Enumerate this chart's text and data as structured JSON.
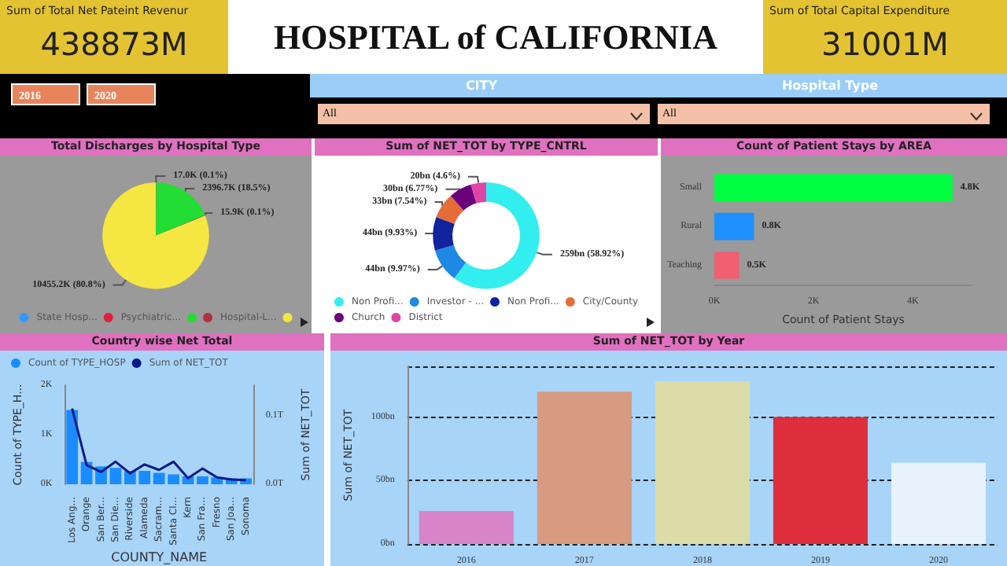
{
  "chart_data": [
    {
      "type": "other",
      "title": "Sum of Total Net Pateint Revenur",
      "annotations": [
        "438873M"
      ]
    },
    {
      "type": "other",
      "title": "HOSPITAL of CALIFORNIA"
    },
    {
      "type": "other",
      "title": "Sum of Total Capital Expenditure",
      "annotations": [
        "31001M"
      ]
    },
    {
      "type": "other",
      "annotations": [
        "2016",
        "2020",
        "CITY",
        "All",
        "Hospital Type",
        "All"
      ]
    },
    {
      "type": "pie",
      "title": "Total Discharges by Hospital Type",
      "categories": [
        "State Hosp...",
        null,
        "Psychiatric...",
        null,
        "Hospital-L...",
        null
      ],
      "values": [
        null,
        null,
        17000,
        2396700,
        15900,
        10455200
      ],
      "colors": [
        "#3399ff",
        "#1a2a9e",
        "#e0203a",
        "#22dd33",
        "#b03040",
        "#f5e642"
      ],
      "value_labels": [
        null,
        null,
        "17.0K (0.1%)",
        "2396.7K (18.5%)",
        "15.9K (0.1%)",
        "10455.2K (80.8%)"
      ],
      "legend": "bottom"
    },
    {
      "type": "donut",
      "title": "Sum of NET_TOT by TYPE_CNTRL",
      "categories": [
        "Non Profi...",
        "Investor - ...",
        "Non Profi...",
        "City/County",
        "Church",
        "District"
      ],
      "values": [
        259000000000,
        44000000000,
        44000000000,
        33000000000,
        30000000000,
        20000000000
      ],
      "colors": [
        "#33eeee",
        "#1e88e5",
        "#12239e",
        "#e66c37",
        "#6b007b",
        "#e044a7"
      ],
      "value_labels": [
        "259bn (58.92%)",
        "44bn (9.97%)",
        "44bn (9.93%)",
        "33bn (7.54%)",
        "30bn (6.77%)",
        "20bn (4.6%)"
      ],
      "legend": "bottom"
    },
    {
      "type": "bar",
      "orientation": "horizontal",
      "title": "Count of Patient Stays by AREA",
      "categories": [
        "Small",
        "Rural",
        "Teaching"
      ],
      "values": [
        4.8,
        0.8,
        0.5
      ],
      "colors": [
        "#00ff40",
        "#1e90ff",
        "#f06070"
      ],
      "value_labels": [
        "4.8K",
        "0.8K",
        "0.5K"
      ],
      "xlabel": "Count of Patient Stays",
      "xlim": [
        0,
        5.2
      ],
      "xticks": [
        {
          "value": 0,
          "label": "0K"
        },
        {
          "value": 2,
          "label": "2K"
        },
        {
          "value": 4,
          "label": "4K"
        }
      ]
    },
    {
      "type": "bar",
      "title": "Country wise Net Total",
      "categories": [
        "Los Ang...",
        "Orange",
        "San Ber...",
        "San Die...",
        "Riverside",
        "Alameda",
        "Sacram...",
        "Santa Cl...",
        "Kern",
        "San Fra...",
        "Fresno",
        "San Joa...",
        "Sonoma"
      ],
      "xlabel": "COUNTY_NAME",
      "ylabel": "Count of TYPE_H...",
      "y2label": "Sum of NET_TOT",
      "ylim": [
        0,
        2000
      ],
      "yticks": [
        {
          "value": 0,
          "label": "0K"
        },
        {
          "value": 1000,
          "label": "1K"
        },
        {
          "value": 2000,
          "label": "2K"
        }
      ],
      "y2lim": [
        0,
        0.145
      ],
      "y2ticks": [
        {
          "value": 0,
          "label": "0.0T"
        },
        {
          "value": 0.1,
          "label": "0.1T"
        }
      ],
      "legend": "top left",
      "marker": "none",
      "series": [
        {
          "name": "Count of TYPE_HOSP",
          "type": "bar",
          "color": "#1a8cff",
          "values": [
            1500,
            450,
            360,
            330,
            270,
            270,
            230,
            200,
            160,
            160,
            140,
            120,
            120
          ]
        },
        {
          "name": "Sum of NET_TOT",
          "type": "line",
          "axis": "y2",
          "color": "#0a1a8a",
          "values": [
            0.111,
            0.028,
            0.018,
            0.033,
            0.016,
            0.029,
            0.021,
            0.033,
            0.009,
            0.023,
            0.01,
            0.007,
            0.006
          ]
        }
      ]
    },
    {
      "type": "bar",
      "title": "Sum of NET_TOT by Year",
      "categories": [
        "2016",
        "2017",
        "2018",
        "2019",
        "2020"
      ],
      "values": [
        26,
        120,
        128,
        100,
        64
      ],
      "colors": [
        "#d884c8",
        "#d89a80",
        "#dcdca8",
        "#dd2e3c",
        "#e8f2fc"
      ],
      "ylabel": "Sum of NET_TOT",
      "ylim": [
        0,
        140
      ],
      "yticks": [
        {
          "value": 0,
          "label": "0bn"
        },
        {
          "value": 50,
          "label": "50bn"
        },
        {
          "value": 100,
          "label": "100bn"
        }
      ],
      "grid": "y"
    }
  ]
}
